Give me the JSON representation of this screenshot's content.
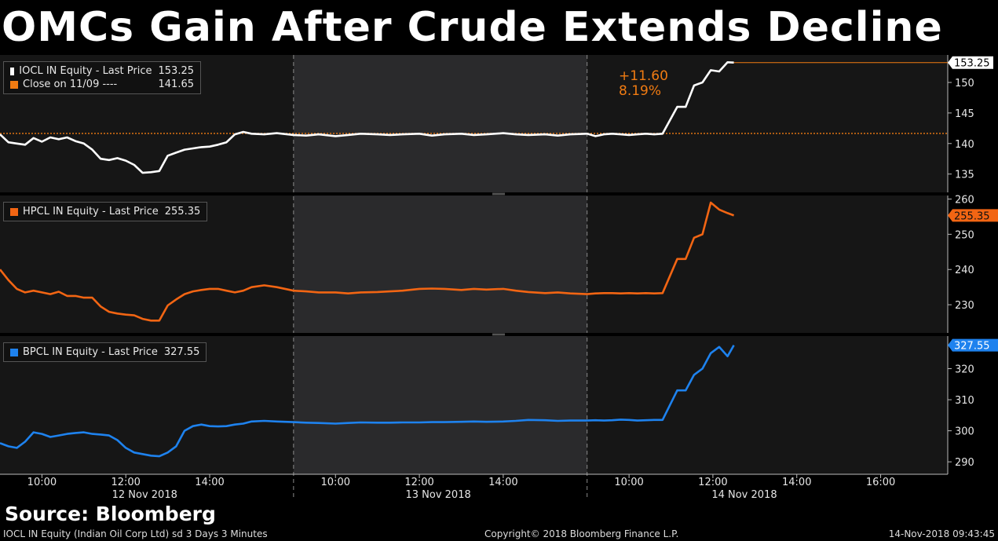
{
  "title": "OMCs Gain After Crude Extends Decline",
  "source": "Source: Bloomberg",
  "footer": {
    "left": "IOCL IN Equity (Indian Oil Corp Ltd) sd 3 Days 3 Minutes",
    "center": "Copyright© 2018 Bloomberg Finance L.P.",
    "right": "14-Nov-2018 09:43:45"
  },
  "colors": {
    "iocl": "#ffffff",
    "close": "#f07b12",
    "hpcl": "#f26513",
    "bpcl": "#1e82ee",
    "background": "#000000",
    "panel": "#161616",
    "session_shade": "#2a2a2c"
  },
  "chart_data": [
    {
      "type": "line",
      "panel": "IOCL",
      "ylim": [
        132,
        154.5
      ],
      "yticks": [
        135,
        140,
        145,
        150
      ],
      "legend": [
        {
          "name": "IOCL IN Equity - Last Price",
          "value": "153.25"
        },
        {
          "name": "Close on 11/09 ----",
          "value": "141.65"
        }
      ],
      "last_price_label": "153.25",
      "reference_line": 141.65,
      "change_abs": "+11.60",
      "change_pct": "8.19%",
      "series": [
        {
          "name": "IOCL IN Equity - Last Price",
          "x": [
            0,
            0.2,
            0.4,
            0.6,
            0.8,
            1,
            1.2,
            1.4,
            1.6,
            1.8,
            2,
            2.2,
            2.4,
            2.6,
            2.8,
            3,
            3.2,
            3.4,
            3.6,
            3.8,
            4,
            4.2,
            4.4,
            4.6,
            4.8,
            5,
            5.2,
            5.4,
            5.6,
            5.8,
            6,
            6.3,
            6.6,
            7,
            7.3,
            7.6,
            8,
            8.3,
            8.6,
            9,
            9.3,
            9.6,
            10,
            10.3,
            10.6,
            11,
            11.3,
            11.6,
            12,
            12.3,
            12.6,
            13,
            13.3,
            13.6,
            14,
            14.2,
            14.4,
            14.6,
            14.8,
            15,
            15.2,
            15.4,
            15.6,
            15.8,
            16.15,
            16.35,
            16.55,
            16.75,
            16.95,
            17.15,
            17.35,
            17.5
          ],
          "y": [
            141.5,
            140.2,
            140,
            139.8,
            140.9,
            140.3,
            141,
            140.7,
            141,
            140.4,
            140,
            139,
            137.5,
            137.3,
            137.6,
            137.2,
            136.5,
            135.2,
            135.3,
            135.5,
            138,
            138.5,
            139,
            139.2,
            139.4,
            139.5,
            139.8,
            140.2,
            141.5,
            141.9,
            141.6,
            141.5,
            141.7,
            141.4,
            141.3,
            141.5,
            141.2,
            141.4,
            141.6,
            141.5,
            141.4,
            141.5,
            141.6,
            141.3,
            141.5,
            141.6,
            141.4,
            141.5,
            141.7,
            141.5,
            141.4,
            141.5,
            141.3,
            141.5,
            141.6,
            141.2,
            141.5,
            141.6,
            141.5,
            141.4,
            141.5,
            141.6,
            141.5,
            141.6,
            146,
            146,
            149.5,
            150,
            152,
            151.8,
            153.3,
            153.25
          ]
        }
      ]
    },
    {
      "type": "line",
      "panel": "HPCL",
      "ylim": [
        222,
        261
      ],
      "yticks": [
        230,
        240,
        250,
        260
      ],
      "legend": [
        {
          "name": "HPCL IN Equity - Last Price",
          "value": "255.35"
        }
      ],
      "last_price_label": "255.35",
      "series": [
        {
          "name": "HPCL IN Equity - Last Price",
          "x": [
            0,
            0.2,
            0.4,
            0.6,
            0.8,
            1,
            1.2,
            1.4,
            1.6,
            1.8,
            2,
            2.2,
            2.4,
            2.6,
            2.8,
            3,
            3.2,
            3.4,
            3.6,
            3.8,
            4,
            4.2,
            4.4,
            4.6,
            4.8,
            5,
            5.2,
            5.4,
            5.6,
            5.8,
            6,
            6.3,
            6.6,
            7,
            7.3,
            7.6,
            8,
            8.3,
            8.6,
            9,
            9.3,
            9.6,
            10,
            10.3,
            10.6,
            11,
            11.3,
            11.6,
            12,
            12.3,
            12.6,
            13,
            13.3,
            13.6,
            14,
            14.2,
            14.4,
            14.6,
            14.8,
            15,
            15.2,
            15.4,
            15.6,
            15.8,
            16.15,
            16.35,
            16.55,
            16.75,
            16.95,
            17.15,
            17.35,
            17.5
          ],
          "y": [
            240,
            237,
            234.5,
            233.5,
            234,
            233.5,
            233,
            233.7,
            232.5,
            232.5,
            232,
            232,
            229.5,
            228,
            227.5,
            227.2,
            227,
            226,
            225.5,
            225.5,
            229.8,
            231.5,
            233,
            233.8,
            234.2,
            234.5,
            234.5,
            234,
            233.5,
            234,
            235,
            235.5,
            235,
            234,
            233.8,
            233.5,
            233.5,
            233.2,
            233.5,
            233.6,
            233.8,
            234,
            234.5,
            234.6,
            234.5,
            234.2,
            234.5,
            234.3,
            234.5,
            234,
            233.6,
            233.3,
            233.5,
            233.2,
            233,
            233.2,
            233.3,
            233.3,
            233.2,
            233.3,
            233.2,
            233.3,
            233.2,
            233.3,
            243,
            243,
            249,
            250,
            259,
            257,
            256,
            255.35
          ]
        }
      ]
    },
    {
      "type": "line",
      "panel": "BPCL",
      "ylim": [
        286,
        330.5
      ],
      "yticks": [
        290,
        300,
        310,
        320
      ],
      "legend": [
        {
          "name": "BPCL IN Equity - Last Price",
          "value": "327.55"
        }
      ],
      "last_price_label": "327.55",
      "series": [
        {
          "name": "BPCL IN Equity - Last Price",
          "x": [
            0,
            0.2,
            0.4,
            0.6,
            0.8,
            1,
            1.2,
            1.4,
            1.6,
            1.8,
            2,
            2.2,
            2.4,
            2.6,
            2.8,
            3,
            3.2,
            3.4,
            3.6,
            3.8,
            4,
            4.2,
            4.4,
            4.6,
            4.8,
            5,
            5.2,
            5.4,
            5.6,
            5.8,
            6,
            6.3,
            6.6,
            7,
            7.3,
            7.6,
            8,
            8.3,
            8.6,
            9,
            9.3,
            9.6,
            10,
            10.3,
            10.6,
            11,
            11.3,
            11.6,
            12,
            12.3,
            12.6,
            13,
            13.3,
            13.6,
            14,
            14.2,
            14.4,
            14.6,
            14.8,
            15,
            15.2,
            15.4,
            15.6,
            15.8,
            16.15,
            16.35,
            16.55,
            16.75,
            16.95,
            17.15,
            17.35,
            17.5
          ],
          "y": [
            296,
            295,
            294.5,
            296.5,
            299.5,
            299,
            298,
            298.5,
            299,
            299.3,
            299.5,
            299,
            298.8,
            298.5,
            297,
            294.5,
            293,
            292.5,
            292,
            291.8,
            293,
            295,
            300,
            301.5,
            302,
            301.5,
            301.4,
            301.5,
            302,
            302.3,
            303,
            303.2,
            303,
            302.8,
            302.6,
            302.5,
            302.3,
            302.5,
            302.7,
            302.6,
            302.6,
            302.7,
            302.7,
            302.8,
            302.8,
            302.9,
            303,
            302.9,
            303,
            303.2,
            303.5,
            303.4,
            303.2,
            303.3,
            303.3,
            303.4,
            303.3,
            303.4,
            303.6,
            303.5,
            303.3,
            303.4,
            303.5,
            303.5,
            313,
            313,
            318,
            320,
            325,
            327,
            324,
            327.55
          ]
        }
      ]
    }
  ],
  "x_axis": {
    "ticks": [
      {
        "x": 1,
        "label": "10:00"
      },
      {
        "x": 3,
        "label": "12:00"
      },
      {
        "x": 5,
        "label": "14:00"
      },
      {
        "x": 8,
        "label": "10:00"
      },
      {
        "x": 10,
        "label": "12:00"
      },
      {
        "x": 12,
        "label": "14:00"
      },
      {
        "x": 15,
        "label": "10:00"
      },
      {
        "x": 17,
        "label": "12:00"
      },
      {
        "x": 19,
        "label": "14:00"
      },
      {
        "x": 21,
        "label": "16:00"
      }
    ],
    "days": [
      {
        "x": 3.45,
        "label": "12 Nov 2018"
      },
      {
        "x": 10.45,
        "label": "13 Nov 2018"
      },
      {
        "x": 17.75,
        "label": "14 Nov 2018"
      }
    ],
    "range": [
      0,
      22.6
    ],
    "session_breaks": [
      7,
      14
    ]
  }
}
